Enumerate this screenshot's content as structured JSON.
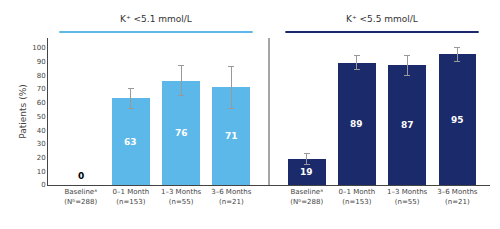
{
  "chart_data": {
    "type": "bar",
    "categories": [
      "Baselineᵃ\n(Nᵇ=288)",
      "0–1 Month\n(n=153)",
      "1–3 Months\n(n=55)",
      "3–6 Months\n(n=21)"
    ],
    "series": [
      {
        "name": "K⁺ <5.1 mmol/L",
        "color": "#5BB8E8",
        "values": [
          0,
          63,
          76,
          71
        ],
        "errors": [
          0,
          7,
          11,
          15
        ]
      },
      {
        "name": "K⁺ <5.5 mmol/L",
        "color": "#1B2A6B",
        "values": [
          19,
          89,
          87,
          95
        ],
        "errors": [
          4,
          5,
          7,
          5
        ]
      }
    ],
    "ylabel": "Patients (%)",
    "ylim": [
      0,
      107
    ],
    "yticks": [
      0,
      10,
      20,
      30,
      40,
      50,
      60,
      70,
      80,
      90,
      100
    ],
    "grid": false,
    "data_labels": true
  }
}
